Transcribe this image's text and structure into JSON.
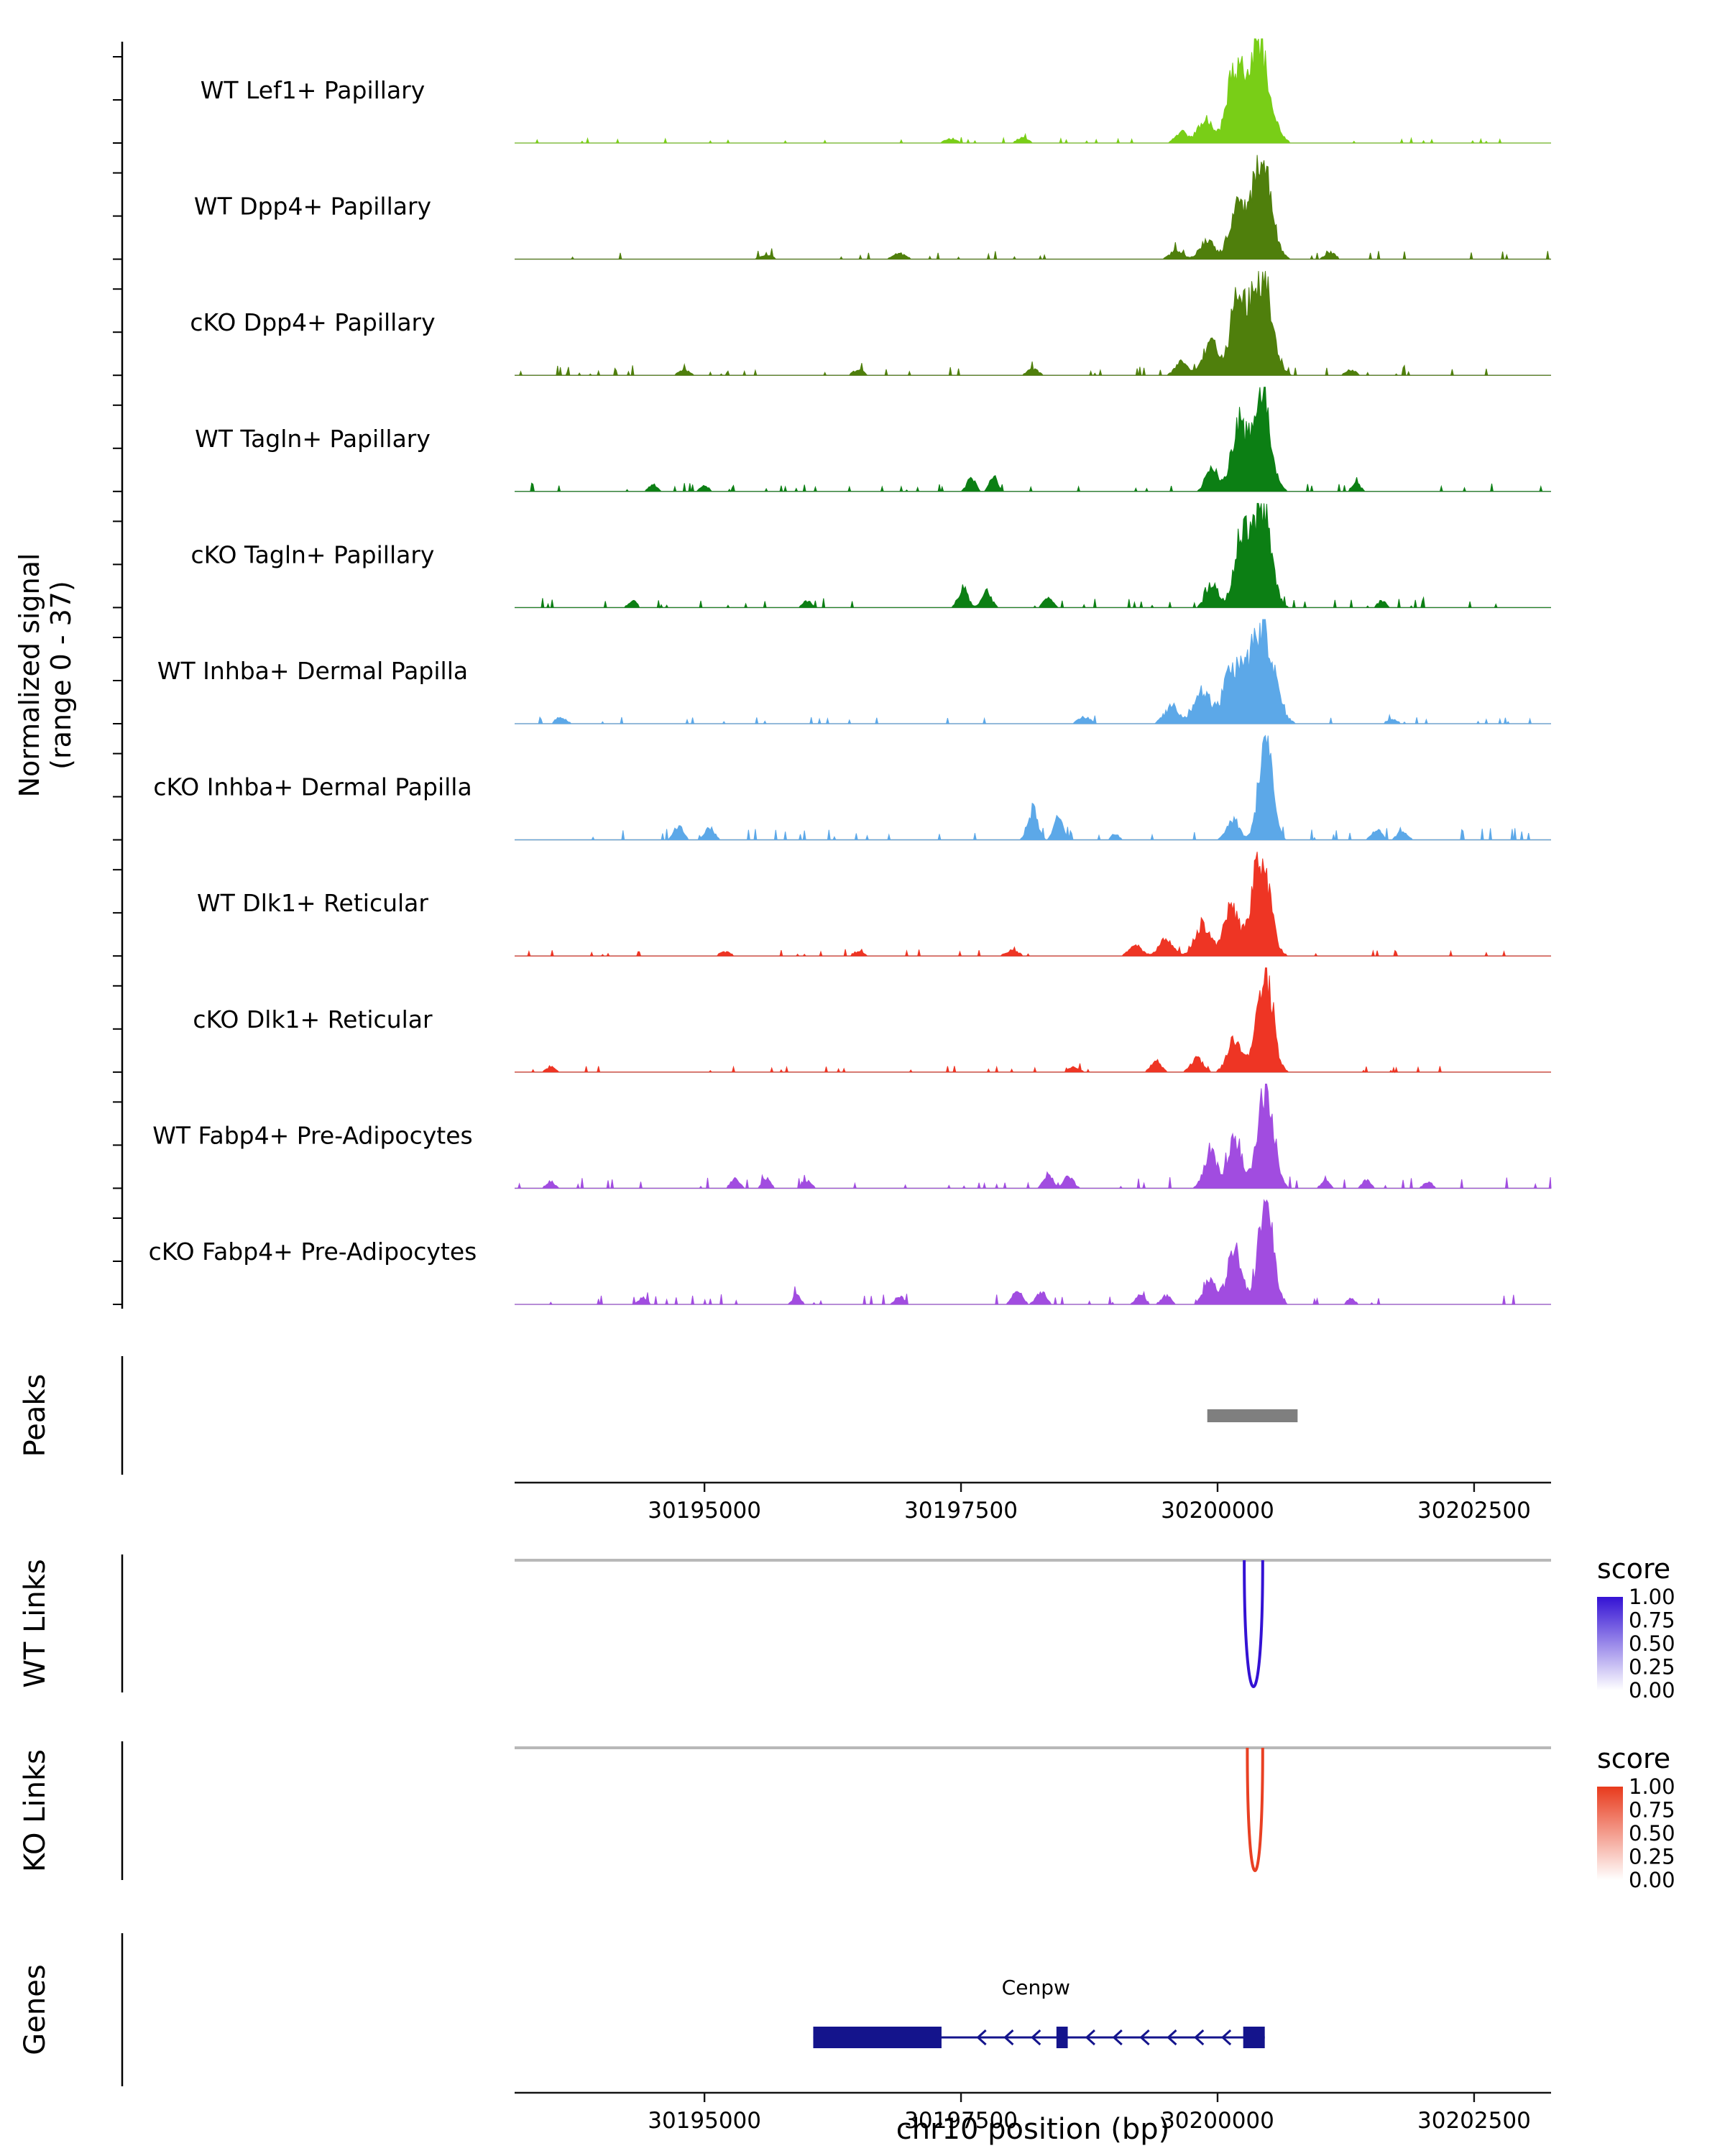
{
  "chart_data": {
    "type": "area",
    "subtype": "genome-browser-coverage-tracks",
    "region": {
      "chrom": "chr10",
      "start": 30193150,
      "end": 30203250
    },
    "axis": {
      "title": "chr10 position (bp)",
      "ticks": [
        30195000,
        30197500,
        30200000,
        30202500
      ],
      "tick_labels": [
        "30195000",
        "30197500",
        "30200000",
        "30202500"
      ]
    },
    "signal": {
      "ylabel_line1": "Normalized signal",
      "ylabel_line2": "(range 0 - 37)",
      "yrange": [
        0,
        37
      ],
      "tracks": [
        {
          "label": "WT Lef1+ Papillary",
          "color": "#79ce17",
          "seed": 11,
          "noise": 0.03,
          "peaks": [
            [
              30200380,
              0.95,
              110
            ],
            [
              30200150,
              0.55,
              70
            ],
            [
              30199880,
              0.22,
              70
            ],
            [
              30199650,
              0.1,
              60
            ],
            [
              30198100,
              0.05,
              50
            ],
            [
              30197400,
              0.04,
              60
            ]
          ]
        },
        {
          "label": "WT Dpp4+ Papillary",
          "color": "#4f7f0c",
          "seed": 22,
          "noise": 0.05,
          "peaks": [
            [
              30200420,
              0.95,
              95
            ],
            [
              30200180,
              0.45,
              70
            ],
            [
              30199900,
              0.18,
              70
            ],
            [
              30199600,
              0.08,
              60
            ],
            [
              30201100,
              0.06,
              50
            ],
            [
              30196900,
              0.05,
              60
            ],
            [
              30195600,
              0.04,
              60
            ]
          ]
        },
        {
          "label": "cKO Dpp4+ Papillary",
          "color": "#4f7f0c",
          "seed": 33,
          "noise": 0.06,
          "peaks": [
            [
              30200430,
              0.95,
              95
            ],
            [
              30200200,
              0.7,
              75
            ],
            [
              30199930,
              0.3,
              70
            ],
            [
              30199650,
              0.12,
              60
            ],
            [
              30201300,
              0.05,
              50
            ],
            [
              30198200,
              0.06,
              50
            ],
            [
              30196500,
              0.05,
              50
            ],
            [
              30194800,
              0.05,
              50
            ]
          ]
        },
        {
          "label": "WT Tagln+ Papillary",
          "color": "#0c7f14",
          "seed": 44,
          "noise": 0.05,
          "peaks": [
            [
              30200420,
              0.95,
              85
            ],
            [
              30200200,
              0.55,
              70
            ],
            [
              30199950,
              0.2,
              60
            ],
            [
              30197600,
              0.13,
              40
            ],
            [
              30197820,
              0.13,
              40
            ],
            [
              30201350,
              0.08,
              40
            ],
            [
              30194500,
              0.06,
              40
            ],
            [
              30195000,
              0.05,
              40
            ]
          ]
        },
        {
          "label": "cKO Tagln+ Papillary",
          "color": "#0c7f14",
          "seed": 55,
          "noise": 0.06,
          "peaks": [
            [
              30200430,
              0.95,
              85
            ],
            [
              30200230,
              0.65,
              70
            ],
            [
              30199950,
              0.22,
              60
            ],
            [
              30197520,
              0.18,
              45
            ],
            [
              30197750,
              0.15,
              45
            ],
            [
              30198350,
              0.1,
              45
            ],
            [
              30196000,
              0.06,
              40
            ],
            [
              30194300,
              0.06,
              40
            ],
            [
              30201600,
              0.06,
              40
            ]
          ]
        },
        {
          "label": "WT Inhba+ Dermal Papilla",
          "color": "#5ca8e8",
          "seed": 66,
          "noise": 0.04,
          "peaks": [
            [
              30200430,
              0.95,
              110
            ],
            [
              30200150,
              0.5,
              90
            ],
            [
              30199850,
              0.3,
              80
            ],
            [
              30199550,
              0.15,
              70
            ],
            [
              30198700,
              0.06,
              60
            ],
            [
              30193600,
              0.06,
              50
            ],
            [
              30201700,
              0.04,
              50
            ]
          ]
        },
        {
          "label": "cKO Inhba+ Dermal Papilla",
          "color": "#5ca8e8",
          "seed": 77,
          "noise": 0.07,
          "peaks": [
            [
              30200470,
              0.95,
              65
            ],
            [
              30200150,
              0.18,
              60
            ],
            [
              30198200,
              0.28,
              45
            ],
            [
              30198450,
              0.18,
              45
            ],
            [
              30194750,
              0.13,
              45
            ],
            [
              30195050,
              0.11,
              45
            ],
            [
              30201550,
              0.1,
              45
            ],
            [
              30201800,
              0.09,
              45
            ],
            [
              30199000,
              0.05,
              40
            ]
          ]
        },
        {
          "label": "WT Dlk1+ Reticular",
          "color": "#ee3524",
          "seed": 88,
          "noise": 0.04,
          "peaks": [
            [
              30200420,
              0.95,
              85
            ],
            [
              30200130,
              0.45,
              75
            ],
            [
              30199850,
              0.3,
              70
            ],
            [
              30199500,
              0.15,
              70
            ],
            [
              30199200,
              0.1,
              60
            ],
            [
              30198000,
              0.05,
              60
            ],
            [
              30196500,
              0.04,
              50
            ],
            [
              30195200,
              0.04,
              50
            ]
          ]
        },
        {
          "label": "cKO Dlk1+ Reticular",
          "color": "#ee3524",
          "seed": 99,
          "noise": 0.04,
          "peaks": [
            [
              30200460,
              0.95,
              75
            ],
            [
              30200170,
              0.3,
              70
            ],
            [
              30199800,
              0.12,
              60
            ],
            [
              30199400,
              0.1,
              50
            ],
            [
              30198600,
              0.05,
              50
            ],
            [
              30193500,
              0.05,
              40
            ]
          ]
        },
        {
          "label": "WT Fabp4+ Pre-Adipocytes",
          "color": "#a14ce0",
          "seed": 101,
          "noise": 0.07,
          "peaks": [
            [
              30200470,
              0.95,
              75
            ],
            [
              30200170,
              0.45,
              70
            ],
            [
              30199930,
              0.35,
              60
            ],
            [
              30198350,
              0.13,
              45
            ],
            [
              30198550,
              0.11,
              45
            ],
            [
              30195300,
              0.1,
              40
            ],
            [
              30195600,
              0.09,
              40
            ],
            [
              30196000,
              0.07,
              40
            ],
            [
              30201050,
              0.07,
              40
            ],
            [
              30201450,
              0.07,
              40
            ],
            [
              30202050,
              0.06,
              40
            ],
            [
              30193500,
              0.06,
              40
            ]
          ]
        },
        {
          "label": "cKO Fabp4+ Pre-Adipocytes",
          "color": "#a14ce0",
          "seed": 111,
          "noise": 0.06,
          "peaks": [
            [
              30200470,
              0.95,
              70
            ],
            [
              30200170,
              0.5,
              70
            ],
            [
              30199930,
              0.25,
              60
            ],
            [
              30198050,
              0.15,
              45
            ],
            [
              30198280,
              0.12,
              45
            ],
            [
              30199250,
              0.09,
              45
            ],
            [
              30199500,
              0.08,
              45
            ],
            [
              30196900,
              0.08,
              40
            ],
            [
              30195900,
              0.08,
              40
            ],
            [
              30194400,
              0.06,
              40
            ],
            [
              30201300,
              0.05,
              40
            ]
          ]
        }
      ]
    },
    "peaks_track": {
      "label": "Peaks",
      "color": "#7f7f7f",
      "intervals": [
        [
          30199900,
          30200780
        ]
      ]
    },
    "links": [
      {
        "label": "WT Links",
        "legend_title": "score",
        "legend_ticks": [
          "1.00",
          "0.75",
          "0.50",
          "0.25",
          "0.00"
        ],
        "color_high": "#3412d4",
        "color_low": "#ffffff",
        "arcs": [
          {
            "start": 30200260,
            "end": 30200440,
            "score": 1.0
          }
        ]
      },
      {
        "label": "KO Links",
        "legend_title": "score",
        "legend_ticks": [
          "1.00",
          "0.75",
          "0.50",
          "0.25",
          "0.00"
        ],
        "color_high": "#e83a1c",
        "color_low": "#ffffff",
        "arcs": [
          {
            "start": 30200290,
            "end": 30200440,
            "score": 0.97
          }
        ]
      }
    ],
    "genes_track": {
      "label": "Genes",
      "genes": [
        {
          "name": "Cenpw",
          "strand": "-",
          "color": "#14148c",
          "start": 30196060,
          "end": 30200460,
          "exons": [
            [
              30196060,
              30197310
            ],
            [
              30198430,
              30198540
            ],
            [
              30200250,
              30200460
            ]
          ],
          "label_pos": 30198230
        }
      ]
    }
  }
}
